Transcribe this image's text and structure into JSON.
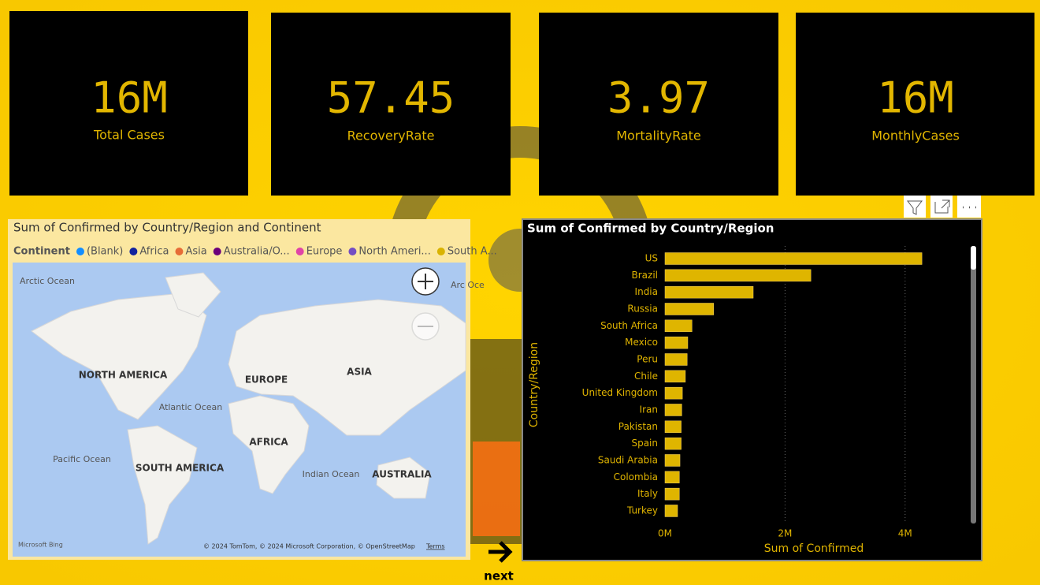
{
  "cards": [
    {
      "value": "16M",
      "label": "Total Cases"
    },
    {
      "value": 57.45,
      "label": "RecoveryRate"
    },
    {
      "value": 3.97,
      "label": "MortalityRate"
    },
    {
      "value": "16M",
      "label": "MonthlyCases"
    }
  ],
  "map": {
    "title": "Sum of Confirmed by Country/Region and Continent",
    "legend": {
      "title": "Continent",
      "items": [
        {
          "name": "(Blank)",
          "color": "#118dff"
        },
        {
          "name": "Africa",
          "color": "#12239e"
        },
        {
          "name": "Asia",
          "color": "#e66c37"
        },
        {
          "name": "Australia/O...",
          "color": "#6b007b"
        },
        {
          "name": "Europe",
          "color": "#e044a7"
        },
        {
          "name": "North Ameri...",
          "color": "#744ec2"
        },
        {
          "name": "South A...",
          "color": "#d9b300"
        }
      ]
    },
    "labels": [
      "Arctic Ocean",
      "NORTH AMERICA",
      "Atlantic Ocean",
      "Pacific Ocean",
      "SOUTH AMERICA",
      "EUROPE",
      "AFRICA",
      "ASIA",
      "Indian Ocean",
      "AUSTRALIA",
      "Arc Oce"
    ],
    "bing": "Microsoft Bing",
    "attribution": "© 2024 TomTom, © 2024 Microsoft Corporation, © OpenStreetMap",
    "terms": "Terms"
  },
  "chart_data": {
    "type": "bar",
    "orientation": "horizontal",
    "title": "Sum of Confirmed by Country/Region",
    "categories": [
      "US",
      "Brazil",
      "India",
      "Russia",
      "South Africa",
      "Mexico",
      "Peru",
      "Chile",
      "United Kingdom",
      "Iran",
      "Pakistan",
      "Spain",
      "Saudi Arabia",
      "Colombia",
      "Italy",
      "Turkey"
    ],
    "values": [
      4280000,
      2430000,
      1470000,
      810000,
      450000,
      380000,
      370000,
      340000,
      290000,
      280000,
      270000,
      270000,
      250000,
      240000,
      240000,
      210000
    ],
    "color": "#dfb500",
    "xlim": [
      0,
      5000000
    ],
    "xticks": [
      {
        "value": 0,
        "label": "0M"
      },
      {
        "value": 2000000,
        "label": "2M"
      },
      {
        "value": 4000000,
        "label": "4M"
      }
    ],
    "xlabel": "Sum of Confirmed",
    "ylabel": "Country/Region",
    "grid": true
  },
  "nav": {
    "label": "next"
  }
}
